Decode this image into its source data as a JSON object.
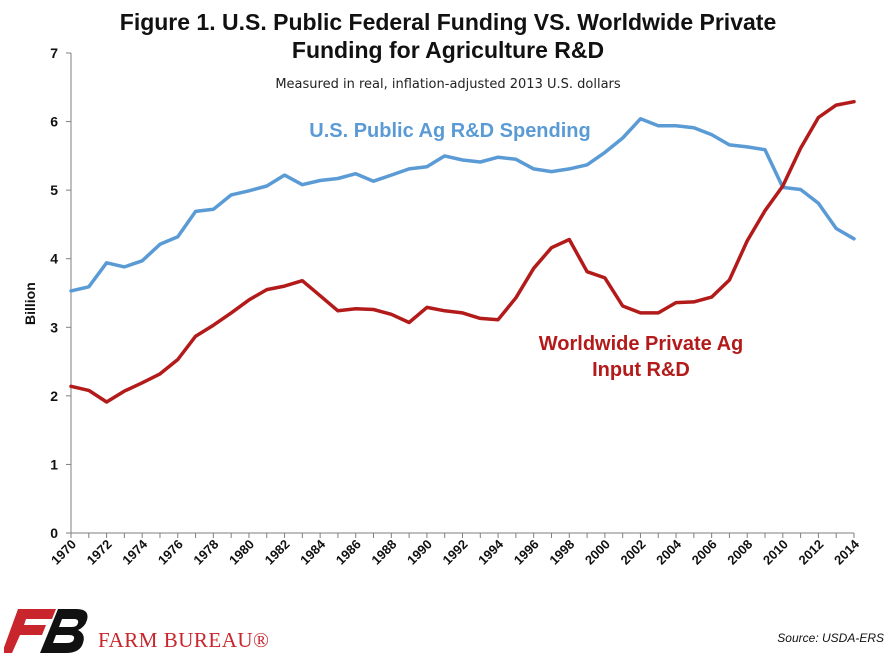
{
  "header": {
    "title_line1": "Figure 1. U.S. Public Federal Funding VS. Worldwide Private",
    "title_line2": "Funding for Agriculture R&D",
    "subtitle": "Measured in real, inflation-adjusted 2013 U.S. dollars"
  },
  "footer": {
    "brand": "FARM BUREAU®",
    "source": "Source: USDA-ERS"
  },
  "colors": {
    "public": "#5b9bd5",
    "private": "#b31b1b",
    "brand": "#c8262c"
  },
  "chart_data": {
    "type": "line",
    "ylabel": "Billion",
    "ylim": [
      0,
      7
    ],
    "yticks": [
      0,
      1,
      2,
      3,
      4,
      5,
      6,
      7
    ],
    "xticks": [
      "1970",
      "1972",
      "1974",
      "1976",
      "1978",
      "1980",
      "1982",
      "1984",
      "1986",
      "1988",
      "1990",
      "1992",
      "1994",
      "1996",
      "1998",
      "2000",
      "2002",
      "2004",
      "2006",
      "2008",
      "2010",
      "2012",
      "2014"
    ],
    "x": [
      1970,
      1971,
      1972,
      1973,
      1974,
      1975,
      1976,
      1977,
      1978,
      1979,
      1980,
      1981,
      1982,
      1983,
      1984,
      1985,
      1986,
      1987,
      1988,
      1989,
      1990,
      1991,
      1992,
      1993,
      1994,
      1995,
      1996,
      1997,
      1998,
      1999,
      2000,
      2001,
      2002,
      2003,
      2004,
      2005,
      2006,
      2007,
      2008,
      2009,
      2010,
      2011,
      2012,
      2013,
      2014
    ],
    "grid": false,
    "series": [
      {
        "name": "U.S. Public Ag R&D Spending",
        "color": "#5b9bd5",
        "values": [
          3.53,
          3.59,
          3.94,
          3.88,
          3.97,
          4.21,
          4.32,
          4.69,
          4.72,
          4.93,
          4.99,
          5.06,
          5.22,
          5.08,
          5.14,
          5.17,
          5.24,
          5.13,
          5.22,
          5.31,
          5.34,
          5.5,
          5.44,
          5.41,
          5.48,
          5.45,
          5.31,
          5.27,
          5.31,
          5.37,
          5.55,
          5.76,
          6.04,
          5.94,
          5.94,
          5.91,
          5.81,
          5.66,
          5.63,
          5.59,
          5.04,
          5.01,
          4.81,
          4.44,
          4.29
        ]
      },
      {
        "name": "Worldwide Private Ag Input R&D",
        "color": "#b31b1b",
        "values": [
          2.14,
          2.08,
          1.91,
          2.07,
          2.19,
          2.32,
          2.53,
          2.87,
          3.03,
          3.21,
          3.4,
          3.55,
          3.6,
          3.68,
          3.46,
          3.24,
          3.27,
          3.26,
          3.19,
          3.07,
          3.29,
          3.24,
          3.21,
          3.13,
          3.11,
          3.43,
          3.86,
          4.16,
          4.28,
          3.81,
          3.72,
          3.31,
          3.21,
          3.21,
          3.36,
          3.37,
          3.44,
          3.69,
          4.26,
          4.7,
          5.06,
          5.61,
          6.06,
          6.24,
          6.29
        ]
      }
    ],
    "annotations": [
      {
        "series": 0,
        "lines": [
          "U.S. Public Ag R&D Spending"
        ]
      },
      {
        "series": 1,
        "lines": [
          "Worldwide Private Ag",
          "Input R&D"
        ]
      }
    ]
  }
}
